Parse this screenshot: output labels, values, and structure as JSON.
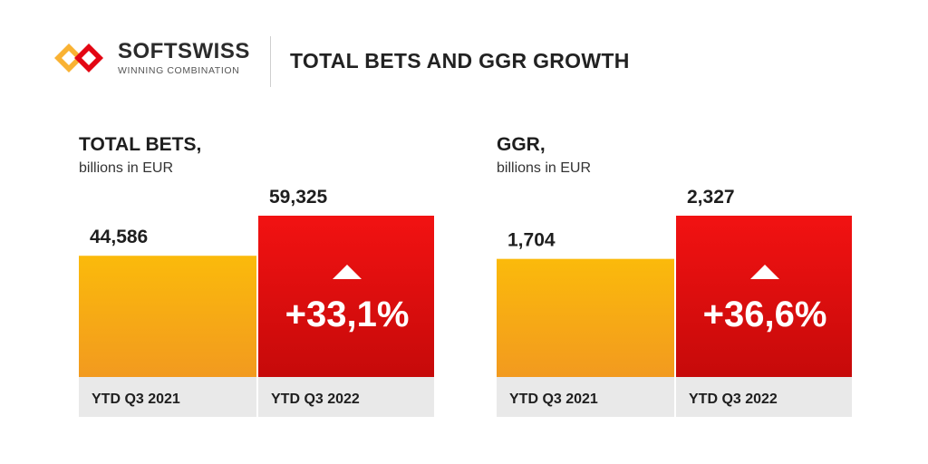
{
  "header": {
    "brand": "SOFTSWISS",
    "tagline": "WINNING COMBINATION",
    "title": "TOTAL BETS AND GGR GROWTH"
  },
  "colors": {
    "orange_top": "#FBBA0B",
    "orange_bottom": "#F29A1F",
    "red_top": "#F21212",
    "red_bottom": "#C60A0A",
    "category_band": "#E9E9E9",
    "logo_yellow": "#F9B233",
    "logo_red": "#E30613"
  },
  "chart_data": [
    {
      "type": "bar",
      "title": "TOTAL BETS,",
      "subtitle": "billions in EUR",
      "categories": [
        "YTD Q3 2021",
        "YTD Q3 2022"
      ],
      "values": [
        44586,
        59325
      ],
      "value_labels": [
        "44,586",
        "59,325"
      ],
      "change_label": "+33,1%",
      "change_icon": "triangle-up-icon",
      "ylim": [
        0,
        59325
      ]
    },
    {
      "type": "bar",
      "title": "GGR,",
      "subtitle": "billions in EUR",
      "categories": [
        "YTD Q3 2021",
        "YTD Q3 2022"
      ],
      "values": [
        1704,
        2327
      ],
      "value_labels": [
        "1,704",
        "2,327"
      ],
      "change_label": "+36,6%",
      "change_icon": "triangle-up-icon",
      "ylim": [
        0,
        2327
      ]
    }
  ]
}
